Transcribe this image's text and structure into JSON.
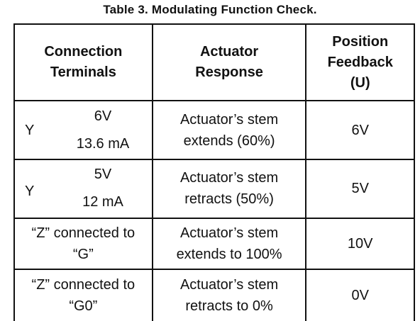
{
  "caption": "Table 3.  Modulating Function Check.",
  "headers": {
    "col1": [
      "Connection",
      "Terminals"
    ],
    "col2": [
      "Actuator",
      "Response"
    ],
    "col3": [
      "Position",
      "Feedback",
      "(U)"
    ]
  },
  "rows": [
    {
      "terminal": "Y",
      "voltage": "6V",
      "current": "13.6 mA",
      "response": [
        "Actuator’s stem",
        "extends (60%)"
      ],
      "feedback": "6V"
    },
    {
      "terminal": "Y",
      "voltage": "5V",
      "current": "12 mA",
      "response": [
        "Actuator’s stem",
        "retracts (50%)"
      ],
      "feedback": "5V"
    },
    {
      "connection": [
        "“Z” connected to",
        "“G”"
      ],
      "response": [
        "Actuator’s stem",
        "extends to 100%"
      ],
      "feedback": "10V"
    },
    {
      "connection": [
        "“Z” connected to",
        "“G0”"
      ],
      "response": [
        "Actuator’s stem",
        "retracts to 0%"
      ],
      "feedback": "0V"
    }
  ]
}
